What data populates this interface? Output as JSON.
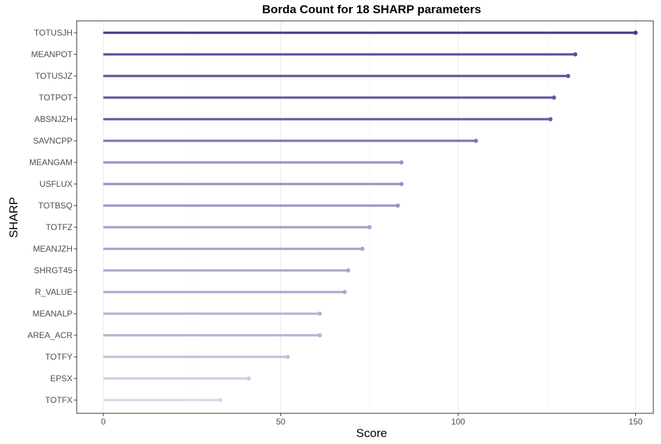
{
  "chart_data": {
    "type": "lollipop",
    "title": "Borda Count for 18 SHARP parameters",
    "xlabel": "Score",
    "ylabel": "SHARP",
    "xlim": [
      -7.5,
      155
    ],
    "x_ticks": [
      0,
      50,
      100,
      150
    ],
    "grid": "vertical major and minor lines",
    "categories": [
      "TOTUSJH",
      "MEANPOT",
      "TOTUSJZ",
      "TOTPOT",
      "ABSNJZH",
      "SAVNCPP",
      "MEANGAM",
      "USFLUX",
      "TOTBSQ",
      "TOTFZ",
      "MEANJZH",
      "SHRGT45",
      "R_VALUE",
      "MEANALP",
      "AREA_ACR",
      "TOTFY",
      "EPSX",
      "TOTFX"
    ],
    "values": [
      150,
      133,
      131,
      127,
      126,
      105,
      84,
      84,
      83,
      75,
      73,
      69,
      68,
      61,
      61,
      52,
      41,
      33
    ],
    "colors": {
      "low": "#d9d7ea",
      "high": "#3f3a92"
    }
  }
}
